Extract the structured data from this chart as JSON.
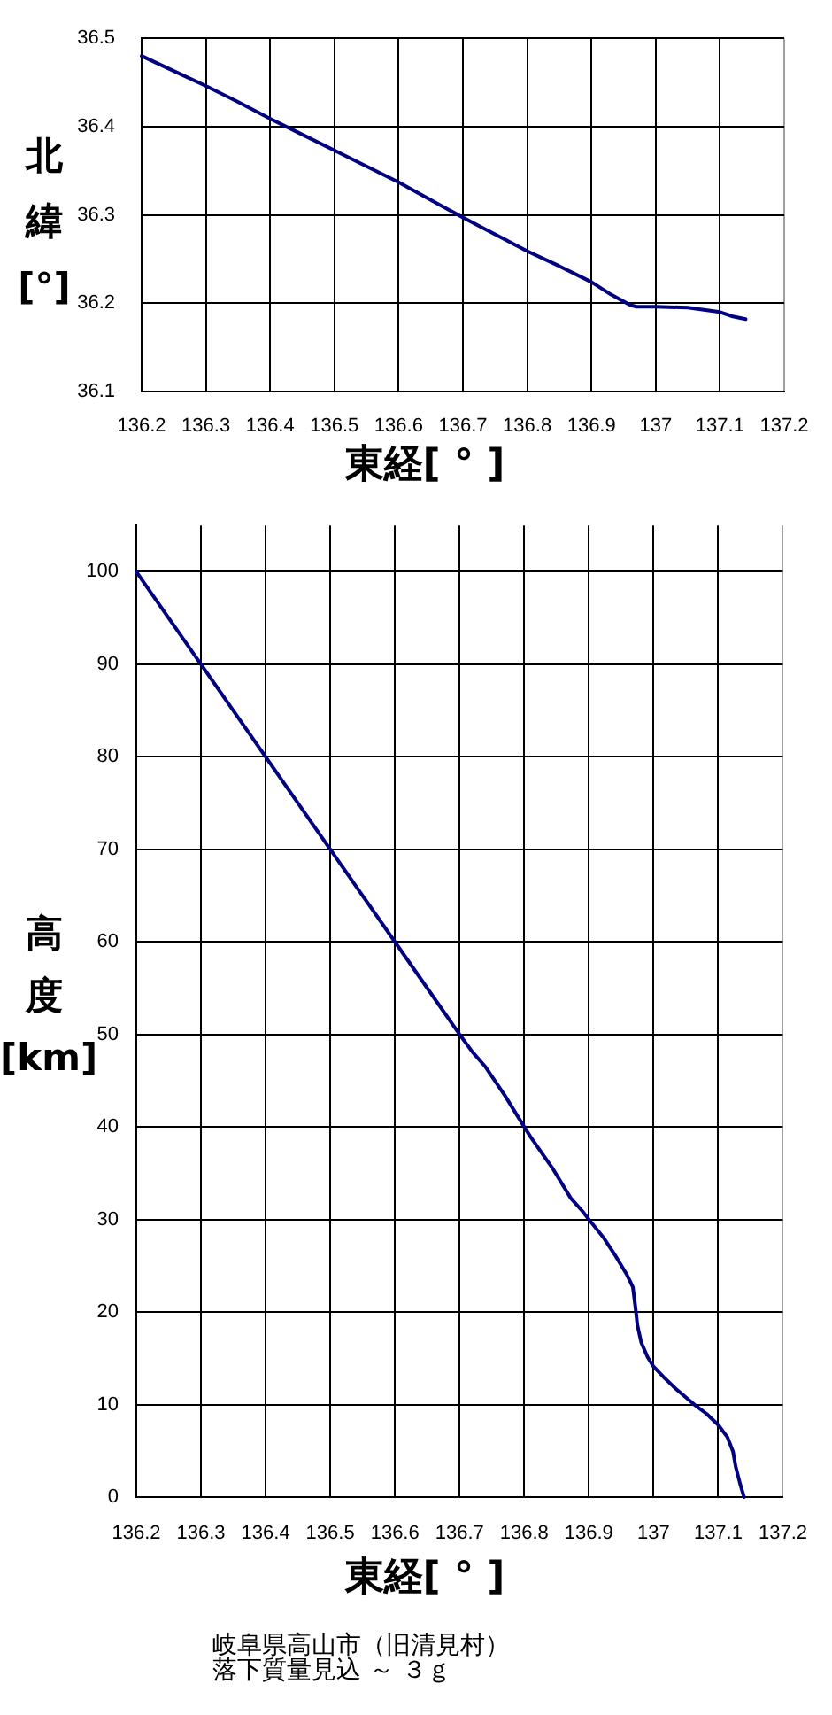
{
  "chart_data": [
    {
      "type": "line",
      "xlabel": "東経[ ° ]",
      "ylabel": "北緯[°]",
      "color": "#000080",
      "marker": "none",
      "grid": true,
      "x": [
        136.2,
        136.25,
        136.3,
        136.35,
        136.4,
        136.45,
        136.5,
        136.55,
        136.6,
        136.65,
        136.7,
        136.75,
        136.8,
        136.85,
        136.9,
        136.93,
        136.96,
        136.97,
        137.0,
        137.05,
        137.07,
        137.1,
        137.12,
        137.14
      ],
      "values": [
        36.48,
        36.463,
        36.446,
        36.428,
        36.409,
        36.391,
        36.373,
        36.355,
        36.337,
        36.317,
        36.297,
        36.278,
        36.259,
        36.242,
        36.224,
        36.21,
        36.198,
        36.196,
        36.196,
        36.195,
        36.193,
        36.19,
        36.185,
        36.182
      ],
      "xlim": [
        136.2,
        137.2
      ],
      "xticks": [
        136.2,
        136.3,
        136.4,
        136.5,
        136.6,
        136.7,
        136.8,
        136.9,
        137,
        137.1,
        137.2
      ],
      "ylim": [
        36.1,
        36.5
      ],
      "yticks": [
        36.1,
        36.2,
        36.3,
        36.4,
        36.5
      ]
    },
    {
      "type": "line",
      "xlabel": "東経[ ° ]",
      "ylabel": "高度[km]",
      "color": "#000080",
      "marker": "none",
      "grid": true,
      "x": [
        136.2,
        136.25,
        136.3,
        136.35,
        136.4,
        136.45,
        136.5,
        136.55,
        136.6,
        136.65,
        136.7,
        136.72,
        136.74,
        136.77,
        136.8,
        136.81,
        136.845,
        136.872,
        136.89,
        136.9,
        136.922,
        136.94,
        136.959,
        136.968,
        136.972,
        136.975,
        136.981,
        136.991,
        137.0,
        137.018,
        137.036,
        137.063,
        137.082,
        137.1,
        137.114,
        137.123,
        137.127,
        137.134,
        137.14
      ],
      "values": [
        100,
        95,
        90,
        85,
        80,
        75,
        70,
        65,
        60,
        55,
        50,
        48.1,
        46.5,
        43.4,
        40,
        38.9,
        35.4,
        32.3,
        30.9,
        30,
        28.1,
        26.2,
        24,
        22.7,
        20.5,
        18.6,
        16.7,
        15.1,
        14.1,
        12.8,
        11.6,
        10,
        9,
        7.8,
        6.5,
        4.9,
        3.3,
        1.4,
        0
      ],
      "xlim": [
        136.2,
        137.2
      ],
      "xticks": [
        136.2,
        136.3,
        136.4,
        136.5,
        136.6,
        136.7,
        136.8,
        136.9,
        137,
        137.1,
        137.2
      ],
      "ylim": [
        0,
        105
      ],
      "yticks": [
        0,
        10,
        20,
        30,
        40,
        50,
        60,
        70,
        80,
        90,
        100
      ],
      "annotations": [
        "岐阜県高山市（旧清見村）",
        "落下質量見込 ～ ３ｇ"
      ]
    }
  ]
}
